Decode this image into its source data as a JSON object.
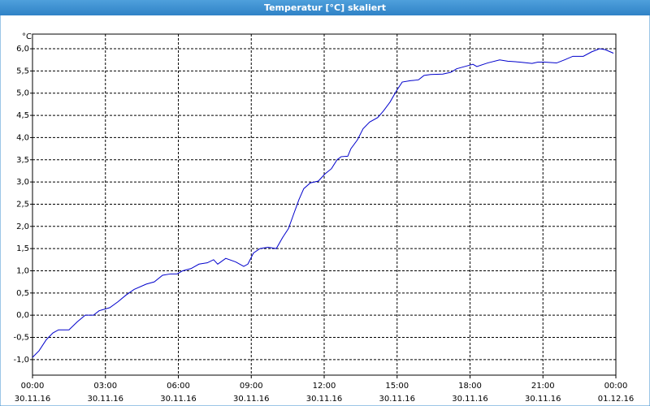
{
  "window_title": "Temperatur [°C] skaliert",
  "chart_data": {
    "type": "line",
    "ylabel": "°C",
    "xlim": [
      0,
      24
    ],
    "ylim": [
      -1.35,
      6.33
    ],
    "grid": true,
    "xticks": [
      {
        "value": 0,
        "label": "00:00",
        "date": "30.11.16"
      },
      {
        "value": 3,
        "label": "03:00",
        "date": "30.11.16"
      },
      {
        "value": 6,
        "label": "06:00",
        "date": "30.11.16"
      },
      {
        "value": 9,
        "label": "09:00",
        "date": "30.11.16"
      },
      {
        "value": 12,
        "label": "12:00",
        "date": "30.11.16"
      },
      {
        "value": 15,
        "label": "15:00",
        "date": "30.11.16"
      },
      {
        "value": 18,
        "label": "18:00",
        "date": "30.11.16"
      },
      {
        "value": 21,
        "label": "21:00",
        "date": "30.11.16"
      },
      {
        "value": 24,
        "label": "00:00",
        "date": "01.12.16"
      }
    ],
    "yticks": [
      {
        "value": -1.0,
        "label": "-1,0"
      },
      {
        "value": -0.5,
        "label": "-0,5"
      },
      {
        "value": 0,
        "label": "0,0"
      },
      {
        "value": 0.5,
        "label": "0,5"
      },
      {
        "value": 1.0,
        "label": "1,0"
      },
      {
        "value": 1.5,
        "label": "1,5"
      },
      {
        "value": 2.0,
        "label": "2,0"
      },
      {
        "value": 2.5,
        "label": "2,5"
      },
      {
        "value": 3.0,
        "label": "3,0"
      },
      {
        "value": 3.5,
        "label": "3,5"
      },
      {
        "value": 4.0,
        "label": "4,0"
      },
      {
        "value": 4.5,
        "label": "4,5"
      },
      {
        "value": 5.0,
        "label": "5,0"
      },
      {
        "value": 5.5,
        "label": "5,5"
      },
      {
        "value": 6.0,
        "label": "6,0"
      }
    ],
    "series": [
      {
        "color": "#0000cc",
        "x": [
          0,
          0.27,
          0.57,
          0.84,
          1.07,
          1.5,
          1.84,
          2.17,
          2.51,
          2.74,
          3.18,
          3.51,
          3.84,
          4.18,
          4.68,
          5.01,
          5.35,
          5.68,
          5.95,
          6.18,
          6.52,
          6.85,
          7.19,
          7.45,
          7.62,
          7.95,
          8.36,
          8.69,
          8.86,
          9.09,
          9.36,
          9.69,
          10.03,
          10.29,
          10.53,
          10.76,
          10.96,
          11.16,
          11.43,
          11.76,
          12.03,
          12.3,
          12.53,
          12.7,
          12.97,
          13.1,
          13.37,
          13.6,
          13.87,
          14.2,
          14.44,
          14.71,
          14.97,
          15.21,
          15.54,
          15.88,
          16.11,
          16.38,
          16.88,
          17.21,
          17.45,
          17.78,
          18.12,
          18.28,
          18.72,
          19.22,
          19.55,
          20.05,
          20.55,
          20.79,
          21.06,
          21.56,
          21.89,
          22.23,
          22.66,
          23.0,
          23.33,
          23.56,
          23.9
        ],
        "values": [
          -0.95,
          -0.8,
          -0.55,
          -0.4,
          -0.33,
          -0.33,
          -0.15,
          0.0,
          0.0,
          0.1,
          0.17,
          0.3,
          0.45,
          0.58,
          0.7,
          0.75,
          0.9,
          0.93,
          0.93,
          1.0,
          1.05,
          1.15,
          1.18,
          1.25,
          1.15,
          1.28,
          1.2,
          1.1,
          1.15,
          1.4,
          1.5,
          1.53,
          1.5,
          1.75,
          1.95,
          2.3,
          2.6,
          2.85,
          2.98,
          3.02,
          3.18,
          3.3,
          3.5,
          3.57,
          3.58,
          3.75,
          3.95,
          4.2,
          4.35,
          4.45,
          4.6,
          4.8,
          5.05,
          5.25,
          5.28,
          5.3,
          5.4,
          5.42,
          5.43,
          5.47,
          5.55,
          5.6,
          5.65,
          5.6,
          5.68,
          5.75,
          5.72,
          5.7,
          5.67,
          5.7,
          5.7,
          5.68,
          5.75,
          5.83,
          5.83,
          5.93,
          6.0,
          5.98,
          5.9
        ]
      }
    ]
  }
}
